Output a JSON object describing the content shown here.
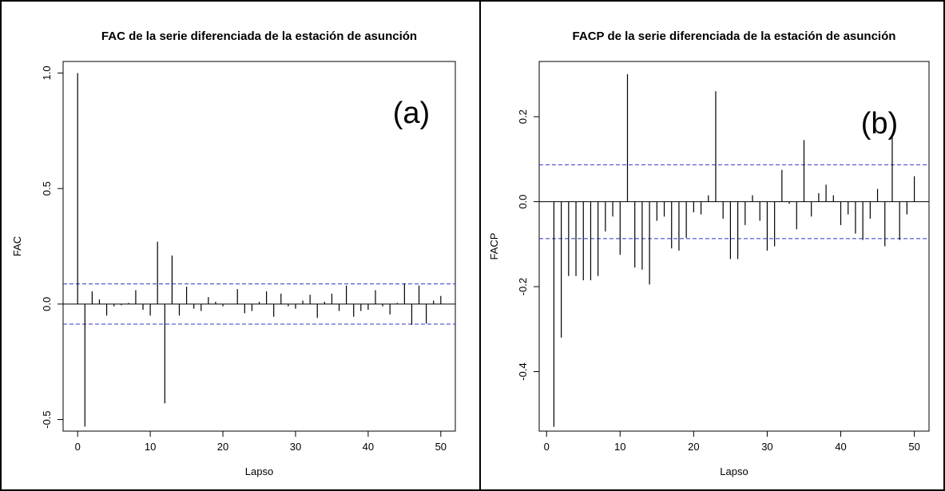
{
  "chart_data": [
    {
      "type": "bar",
      "title": "FAC de la serie diferenciada de la estación de asunción",
      "xlabel": "Lapso",
      "ylabel": "FAC",
      "panel_label": "(a)",
      "xlim": [
        -2,
        52
      ],
      "ylim": [
        -0.55,
        1.05
      ],
      "x_ticks": [
        "0",
        "10",
        "20",
        "30",
        "40",
        "50"
      ],
      "y_ticks": [
        "-0.5",
        "0.0",
        "0.5",
        "1.0"
      ],
      "confidence_band": [
        -0.087,
        0.087
      ],
      "x": [
        0,
        1,
        2,
        3,
        4,
        5,
        6,
        7,
        8,
        9,
        10,
        11,
        12,
        13,
        14,
        15,
        16,
        17,
        18,
        19,
        20,
        21,
        22,
        23,
        24,
        25,
        26,
        27,
        28,
        29,
        30,
        31,
        32,
        33,
        34,
        35,
        36,
        37,
        38,
        39,
        40,
        41,
        42,
        43,
        44,
        45,
        46,
        47,
        48,
        49,
        50
      ],
      "values": [
        1.0,
        -0.53,
        0.055,
        0.02,
        -0.05,
        -0.01,
        -0.005,
        0.005,
        0.06,
        -0.025,
        -0.05,
        0.27,
        -0.43,
        0.21,
        -0.05,
        0.075,
        -0.02,
        -0.03,
        0.03,
        0.01,
        -0.01,
        0.0,
        0.065,
        -0.04,
        -0.03,
        0.01,
        0.055,
        -0.055,
        0.045,
        -0.01,
        -0.02,
        0.015,
        0.04,
        -0.06,
        0.01,
        0.045,
        -0.03,
        0.08,
        -0.055,
        -0.03,
        -0.025,
        0.06,
        -0.01,
        -0.045,
        0.005,
        0.09,
        -0.09,
        0.08,
        -0.085,
        0.015,
        0.035
      ]
    },
    {
      "type": "bar",
      "title": "FACP de la serie diferenciada de la estación de asunción",
      "xlabel": "Lapso",
      "ylabel": "FACP",
      "panel_label": "(b)",
      "xlim": [
        -1,
        52
      ],
      "ylim": [
        -0.54,
        0.33
      ],
      "x_ticks": [
        "0",
        "10",
        "20",
        "30",
        "40",
        "50"
      ],
      "y_ticks": [
        "-0.4",
        "-0.2",
        "0.0",
        "0.2"
      ],
      "confidence_band": [
        -0.087,
        0.087
      ],
      "x": [
        1,
        2,
        3,
        4,
        5,
        6,
        7,
        8,
        9,
        10,
        11,
        12,
        13,
        14,
        15,
        16,
        17,
        18,
        19,
        20,
        21,
        22,
        23,
        24,
        25,
        26,
        27,
        28,
        29,
        30,
        31,
        32,
        33,
        34,
        35,
        36,
        37,
        38,
        39,
        40,
        41,
        42,
        43,
        44,
        45,
        46,
        47,
        48,
        49,
        50
      ],
      "values": [
        -0.53,
        -0.32,
        -0.175,
        -0.175,
        -0.185,
        -0.185,
        -0.175,
        -0.07,
        -0.035,
        -0.125,
        0.3,
        -0.155,
        -0.16,
        -0.195,
        -0.045,
        -0.035,
        -0.11,
        -0.115,
        -0.085,
        -0.025,
        -0.03,
        0.015,
        0.26,
        -0.04,
        -0.135,
        -0.135,
        -0.055,
        0.015,
        -0.045,
        -0.115,
        -0.105,
        0.075,
        -0.005,
        -0.065,
        0.145,
        -0.035,
        0.02,
        0.04,
        0.015,
        -0.055,
        -0.03,
        -0.075,
        -0.09,
        -0.04,
        0.03,
        -0.105,
        0.16,
        -0.09,
        -0.03,
        0.06
      ]
    }
  ]
}
